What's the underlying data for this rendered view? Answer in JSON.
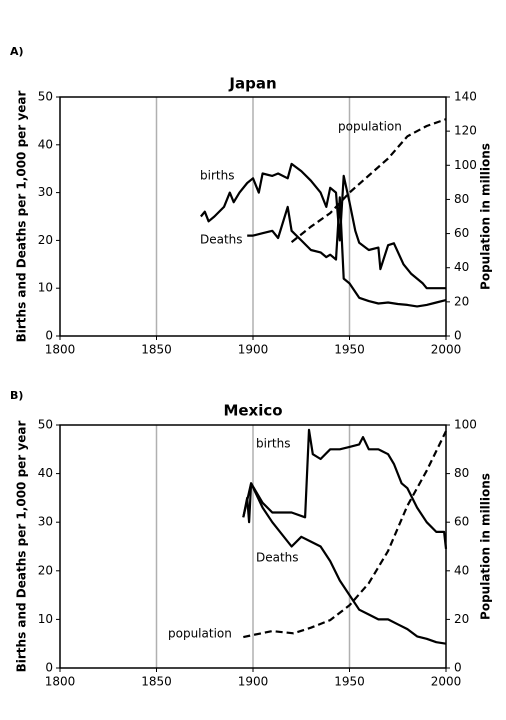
{
  "chart_data": [
    {
      "type": "line",
      "panel": "A)",
      "title": "Japan",
      "ylabel": "Births and Deaths per 1,000 per year",
      "y2label": "Population in millions",
      "xlim": [
        1800,
        2000
      ],
      "xticks": [
        1800,
        1850,
        1900,
        1950,
        2000
      ],
      "ylim": [
        0,
        50
      ],
      "yticks": [
        0,
        10,
        20,
        30,
        40,
        50
      ],
      "y2lim": [
        0,
        140
      ],
      "y2ticks": [
        0,
        20,
        40,
        60,
        80,
        100,
        120,
        140
      ],
      "grid": "x",
      "series": [
        {
          "name": "births",
          "color": "#000000",
          "dashed": false,
          "x": [
            1873,
            1875,
            1877,
            1880,
            1885,
            1888,
            1890,
            1893,
            1897,
            1900,
            1903,
            1905,
            1910,
            1913,
            1918,
            1920,
            1925,
            1930,
            1935,
            1938,
            1940,
            1943,
            1945,
            1947,
            1950,
            1953,
            1955,
            1960,
            1965,
            1966,
            1970,
            1973,
            1978,
            1982,
            1988,
            1990,
            2000
          ],
          "values": [
            25,
            26,
            24,
            25,
            27,
            30,
            28,
            30,
            32,
            33,
            30,
            34,
            33.5,
            34,
            33,
            36,
            34.5,
            32.5,
            30,
            27,
            31,
            30,
            20,
            33.5,
            28,
            22,
            19.5,
            18,
            18.5,
            14,
            19,
            19.4,
            15,
            13,
            11,
            10,
            10
          ]
        },
        {
          "name": "Deaths",
          "color": "#000000",
          "dashed": false,
          "x": [
            1897,
            1900,
            1905,
            1910,
            1913,
            1918,
            1920,
            1925,
            1930,
            1935,
            1938,
            1940,
            1943,
            1945,
            1947,
            1950,
            1955,
            1960,
            1965,
            1970,
            1975,
            1980,
            1985,
            1990,
            1995,
            2000
          ],
          "values": [
            21,
            21,
            21.5,
            22,
            20.5,
            27,
            22,
            20,
            18,
            17.5,
            16.5,
            17,
            16,
            29,
            12,
            11,
            8,
            7.3,
            6.8,
            7,
            6.7,
            6.5,
            6.2,
            6.5,
            7,
            7.5
          ]
        },
        {
          "name": "population",
          "color": "#000000",
          "dashed": true,
          "x": [
            1920,
            1930,
            1940,
            1950,
            1960,
            1970,
            1980,
            1990,
            2000
          ],
          "values": [
            55,
            64,
            72,
            84,
            94,
            104,
            117,
            123,
            127
          ]
        }
      ]
    },
    {
      "type": "line",
      "panel": "B)",
      "title": "Mexico",
      "ylabel": "Births and Deaths per 1,000 per year",
      "y2label": "Population in millions",
      "xlim": [
        1800,
        2000
      ],
      "xticks": [
        1800,
        1850,
        1900,
        1950,
        2000
      ],
      "ylim": [
        0,
        50
      ],
      "yticks": [
        0,
        10,
        20,
        30,
        40,
        50
      ],
      "y2lim": [
        0,
        100
      ],
      "y2ticks": [
        0,
        20,
        40,
        60,
        80,
        100
      ],
      "grid": "x",
      "series": [
        {
          "name": "births",
          "color": "#000000",
          "dashed": false,
          "x": [
            1895,
            1897,
            1898,
            1899,
            1905,
            1910,
            1920,
            1927,
            1929,
            1931,
            1935,
            1940,
            1945,
            1950,
            1955,
            1957,
            1960,
            1965,
            1970,
            1973,
            1977,
            1980,
            1985,
            1990,
            1995,
            1999,
            2000
          ],
          "values": [
            31,
            35,
            30,
            38,
            34,
            32,
            32,
            31,
            49,
            44,
            43,
            45,
            45,
            45.5,
            46,
            47.5,
            45,
            45,
            44,
            42,
            38,
            37,
            33,
            30,
            28,
            28,
            24.5
          ]
        },
        {
          "name": "Deaths",
          "color": "#000000",
          "dashed": false,
          "x": [
            1895,
            1899,
            1905,
            1910,
            1920,
            1925,
            1930,
            1935,
            1940,
            1945,
            1950,
            1955,
            1960,
            1965,
            1970,
            1975,
            1980,
            1985,
            1990,
            1995,
            2000
          ],
          "values": [
            31,
            38,
            33,
            30,
            25,
            27,
            26,
            25,
            22,
            18,
            15,
            12,
            11,
            10,
            10,
            9,
            8,
            6.5,
            6,
            5.3,
            5
          ]
        },
        {
          "name": "population",
          "color": "#000000",
          "dashed": true,
          "x": [
            1895,
            1900,
            1910,
            1921,
            1930,
            1940,
            1950,
            1960,
            1970,
            1980,
            1990,
            2000
          ],
          "values": [
            12.7,
            13.6,
            15.2,
            14.3,
            16.6,
            19.7,
            25.8,
            34.9,
            48.2,
            66.8,
            81.2,
            97.5
          ]
        }
      ]
    }
  ]
}
